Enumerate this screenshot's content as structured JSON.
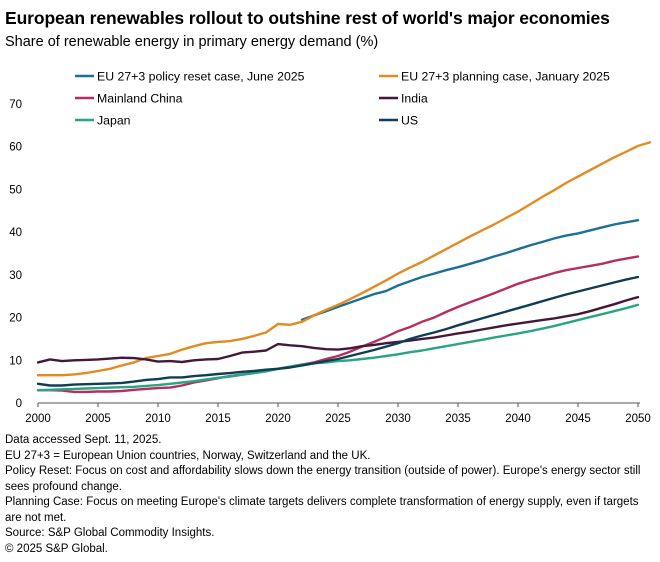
{
  "title": "European renewables rollout to outshine rest of world's major economies",
  "subtitle": "Share of renewable energy in primary energy demand (%)",
  "chart_data": {
    "type": "line",
    "xlim": [
      2000,
      2050
    ],
    "ylim": [
      0,
      70
    ],
    "x_ticks": [
      2000,
      2005,
      2010,
      2015,
      2020,
      2025,
      2030,
      2035,
      2040,
      2045,
      2050
    ],
    "y_ticks": [
      0,
      10,
      20,
      30,
      40,
      50,
      60,
      70
    ],
    "grid": false,
    "legend_position": "top",
    "series": [
      {
        "name": "EU 27+3 policy reset case, June 2025",
        "color": "#1b7096",
        "points": [
          [
            2022,
            19.5
          ],
          [
            2023,
            20.5
          ],
          [
            2024,
            21.5
          ],
          [
            2025,
            22.5
          ],
          [
            2026,
            23.5
          ],
          [
            2027,
            24.5
          ],
          [
            2028,
            25.5
          ],
          [
            2029,
            26.2
          ],
          [
            2030,
            27.5
          ],
          [
            2031,
            28.5
          ],
          [
            2032,
            29.5
          ],
          [
            2033,
            30.3
          ],
          [
            2034,
            31.1
          ],
          [
            2035,
            31.8
          ],
          [
            2036,
            32.6
          ],
          [
            2037,
            33.4
          ],
          [
            2038,
            34.3
          ],
          [
            2039,
            35.1
          ],
          [
            2040,
            36.0
          ],
          [
            2041,
            36.9
          ],
          [
            2042,
            37.7
          ],
          [
            2043,
            38.5
          ],
          [
            2044,
            39.2
          ],
          [
            2045,
            39.7
          ],
          [
            2046,
            40.4
          ],
          [
            2047,
            41.1
          ],
          [
            2048,
            41.8
          ],
          [
            2049,
            42.3
          ],
          [
            2050,
            42.8
          ]
        ]
      },
      {
        "name": "EU 27+3 planning case, January 2025",
        "color": "#e38b21",
        "points": [
          [
            2000,
            6.5
          ],
          [
            2001,
            6.5
          ],
          [
            2002,
            6.5
          ],
          [
            2003,
            6.7
          ],
          [
            2004,
            7.0
          ],
          [
            2005,
            7.5
          ],
          [
            2006,
            8.0
          ],
          [
            2007,
            8.8
          ],
          [
            2008,
            9.5
          ],
          [
            2009,
            10.5
          ],
          [
            2010,
            11.0
          ],
          [
            2011,
            11.5
          ],
          [
            2012,
            12.5
          ],
          [
            2013,
            13.3
          ],
          [
            2014,
            14.0
          ],
          [
            2015,
            14.3
          ],
          [
            2016,
            14.5
          ],
          [
            2017,
            15.0
          ],
          [
            2018,
            15.7
          ],
          [
            2019,
            16.5
          ],
          [
            2020,
            18.5
          ],
          [
            2021,
            18.3
          ],
          [
            2022,
            19.0
          ],
          [
            2023,
            20.5
          ],
          [
            2024,
            21.8
          ],
          [
            2025,
            23.0
          ],
          [
            2026,
            24.3
          ],
          [
            2027,
            25.7
          ],
          [
            2028,
            27.2
          ],
          [
            2029,
            28.7
          ],
          [
            2030,
            30.3
          ],
          [
            2031,
            31.7
          ],
          [
            2032,
            33.0
          ],
          [
            2033,
            34.5
          ],
          [
            2034,
            36.0
          ],
          [
            2035,
            37.5
          ],
          [
            2036,
            39.0
          ],
          [
            2037,
            40.4
          ],
          [
            2038,
            41.8
          ],
          [
            2039,
            43.3
          ],
          [
            2040,
            44.8
          ],
          [
            2041,
            46.5
          ],
          [
            2042,
            48.2
          ],
          [
            2043,
            49.8
          ],
          [
            2044,
            51.5
          ],
          [
            2045,
            53.0
          ],
          [
            2046,
            54.5
          ],
          [
            2047,
            56.0
          ],
          [
            2048,
            57.5
          ],
          [
            2049,
            58.8
          ],
          [
            2050,
            60.2
          ],
          [
            2051,
            61.0
          ]
        ]
      },
      {
        "name": "Mainland China",
        "color": "#b52e62",
        "points": [
          [
            2000,
            3.0
          ],
          [
            2001,
            3.0
          ],
          [
            2002,
            2.9
          ],
          [
            2003,
            2.6
          ],
          [
            2004,
            2.6
          ],
          [
            2005,
            2.7
          ],
          [
            2006,
            2.7
          ],
          [
            2007,
            2.8
          ],
          [
            2008,
            3.1
          ],
          [
            2009,
            3.3
          ],
          [
            2010,
            3.5
          ],
          [
            2011,
            3.6
          ],
          [
            2012,
            4.1
          ],
          [
            2013,
            4.8
          ],
          [
            2014,
            5.3
          ],
          [
            2015,
            5.8
          ],
          [
            2016,
            6.3
          ],
          [
            2017,
            6.7
          ],
          [
            2018,
            7.0
          ],
          [
            2019,
            7.5
          ],
          [
            2020,
            8.0
          ],
          [
            2021,
            8.5
          ],
          [
            2022,
            9.0
          ],
          [
            2023,
            9.5
          ],
          [
            2024,
            10.3
          ],
          [
            2025,
            11.0
          ],
          [
            2026,
            12.0
          ],
          [
            2027,
            13.2
          ],
          [
            2028,
            14.3
          ],
          [
            2029,
            15.5
          ],
          [
            2030,
            16.8
          ],
          [
            2031,
            17.8
          ],
          [
            2032,
            19.0
          ],
          [
            2033,
            20.0
          ],
          [
            2034,
            21.3
          ],
          [
            2035,
            22.5
          ],
          [
            2036,
            23.6
          ],
          [
            2037,
            24.6
          ],
          [
            2038,
            25.7
          ],
          [
            2039,
            26.8
          ],
          [
            2040,
            27.9
          ],
          [
            2041,
            28.8
          ],
          [
            2042,
            29.6
          ],
          [
            2043,
            30.4
          ],
          [
            2044,
            31.1
          ],
          [
            2045,
            31.6
          ],
          [
            2046,
            32.1
          ],
          [
            2047,
            32.6
          ],
          [
            2048,
            33.3
          ],
          [
            2049,
            33.8
          ],
          [
            2050,
            34.3
          ]
        ]
      },
      {
        "name": "India",
        "color": "#45183a",
        "points": [
          [
            2000,
            9.5
          ],
          [
            2001,
            10.2
          ],
          [
            2002,
            9.8
          ],
          [
            2003,
            10.0
          ],
          [
            2004,
            10.1
          ],
          [
            2005,
            10.2
          ],
          [
            2006,
            10.4
          ],
          [
            2007,
            10.6
          ],
          [
            2008,
            10.5
          ],
          [
            2009,
            10.2
          ],
          [
            2010,
            9.7
          ],
          [
            2011,
            9.8
          ],
          [
            2012,
            9.6
          ],
          [
            2013,
            10.0
          ],
          [
            2014,
            10.2
          ],
          [
            2015,
            10.3
          ],
          [
            2016,
            11.0
          ],
          [
            2017,
            11.8
          ],
          [
            2018,
            12.0
          ],
          [
            2019,
            12.3
          ],
          [
            2020,
            13.8
          ],
          [
            2021,
            13.5
          ],
          [
            2022,
            13.3
          ],
          [
            2023,
            12.9
          ],
          [
            2024,
            12.6
          ],
          [
            2025,
            12.5
          ],
          [
            2026,
            12.8
          ],
          [
            2027,
            13.3
          ],
          [
            2028,
            13.6
          ],
          [
            2029,
            14.0
          ],
          [
            2030,
            14.3
          ],
          [
            2031,
            14.6
          ],
          [
            2032,
            15.0
          ],
          [
            2033,
            15.3
          ],
          [
            2034,
            15.8
          ],
          [
            2035,
            16.3
          ],
          [
            2036,
            16.7
          ],
          [
            2037,
            17.2
          ],
          [
            2038,
            17.7
          ],
          [
            2039,
            18.2
          ],
          [
            2040,
            18.6
          ],
          [
            2041,
            19.0
          ],
          [
            2042,
            19.4
          ],
          [
            2043,
            19.8
          ],
          [
            2044,
            20.3
          ],
          [
            2045,
            20.8
          ],
          [
            2046,
            21.5
          ],
          [
            2047,
            22.3
          ],
          [
            2048,
            23.1
          ],
          [
            2049,
            24.0
          ],
          [
            2050,
            24.8
          ]
        ]
      },
      {
        "name": "Japan",
        "color": "#2aa482",
        "points": [
          [
            2000,
            3.0
          ],
          [
            2001,
            3.1
          ],
          [
            2002,
            3.2
          ],
          [
            2003,
            3.3
          ],
          [
            2004,
            3.4
          ],
          [
            2005,
            3.5
          ],
          [
            2006,
            3.6
          ],
          [
            2007,
            3.7
          ],
          [
            2008,
            3.8
          ],
          [
            2009,
            4.0
          ],
          [
            2010,
            4.2
          ],
          [
            2011,
            4.5
          ],
          [
            2012,
            4.8
          ],
          [
            2013,
            5.1
          ],
          [
            2014,
            5.5
          ],
          [
            2015,
            5.9
          ],
          [
            2016,
            6.2
          ],
          [
            2017,
            6.6
          ],
          [
            2018,
            7.0
          ],
          [
            2019,
            7.4
          ],
          [
            2020,
            8.0
          ],
          [
            2021,
            8.5
          ],
          [
            2022,
            9.0
          ],
          [
            2023,
            9.3
          ],
          [
            2024,
            9.5
          ],
          [
            2025,
            9.8
          ],
          [
            2026,
            10.0
          ],
          [
            2027,
            10.3
          ],
          [
            2028,
            10.6
          ],
          [
            2029,
            11.0
          ],
          [
            2030,
            11.4
          ],
          [
            2031,
            11.9
          ],
          [
            2032,
            12.3
          ],
          [
            2033,
            12.8
          ],
          [
            2034,
            13.3
          ],
          [
            2035,
            13.8
          ],
          [
            2036,
            14.3
          ],
          [
            2037,
            14.8
          ],
          [
            2038,
            15.3
          ],
          [
            2039,
            15.8
          ],
          [
            2040,
            16.3
          ],
          [
            2041,
            16.8
          ],
          [
            2042,
            17.4
          ],
          [
            2043,
            18.0
          ],
          [
            2044,
            18.7
          ],
          [
            2045,
            19.4
          ],
          [
            2046,
            20.1
          ],
          [
            2047,
            20.8
          ],
          [
            2048,
            21.5
          ],
          [
            2049,
            22.2
          ],
          [
            2050,
            23.0
          ]
        ]
      },
      {
        "name": "US",
        "color": "#0f3d55",
        "points": [
          [
            2000,
            4.5
          ],
          [
            2001,
            4.1
          ],
          [
            2002,
            4.1
          ],
          [
            2003,
            4.3
          ],
          [
            2004,
            4.4
          ],
          [
            2005,
            4.5
          ],
          [
            2006,
            4.6
          ],
          [
            2007,
            4.7
          ],
          [
            2008,
            5.0
          ],
          [
            2009,
            5.4
          ],
          [
            2010,
            5.6
          ],
          [
            2011,
            6.0
          ],
          [
            2012,
            6.0
          ],
          [
            2013,
            6.3
          ],
          [
            2014,
            6.5
          ],
          [
            2015,
            6.8
          ],
          [
            2016,
            7.0
          ],
          [
            2017,
            7.3
          ],
          [
            2018,
            7.5
          ],
          [
            2019,
            7.8
          ],
          [
            2020,
            8.0
          ],
          [
            2021,
            8.3
          ],
          [
            2022,
            8.8
          ],
          [
            2023,
            9.3
          ],
          [
            2024,
            9.8
          ],
          [
            2025,
            10.3
          ],
          [
            2026,
            11.0
          ],
          [
            2027,
            11.7
          ],
          [
            2028,
            12.4
          ],
          [
            2029,
            13.2
          ],
          [
            2030,
            14.0
          ],
          [
            2031,
            15.0
          ],
          [
            2032,
            15.8
          ],
          [
            2033,
            16.5
          ],
          [
            2034,
            17.3
          ],
          [
            2035,
            18.2
          ],
          [
            2036,
            19.0
          ],
          [
            2037,
            19.8
          ],
          [
            2038,
            20.6
          ],
          [
            2039,
            21.4
          ],
          [
            2040,
            22.2
          ],
          [
            2041,
            23.0
          ],
          [
            2042,
            23.8
          ],
          [
            2043,
            24.6
          ],
          [
            2044,
            25.4
          ],
          [
            2045,
            26.1
          ],
          [
            2046,
            26.8
          ],
          [
            2047,
            27.5
          ],
          [
            2048,
            28.2
          ],
          [
            2049,
            28.9
          ],
          [
            2050,
            29.5
          ]
        ]
      }
    ]
  },
  "notes": [
    "Data accessed Sept. 11, 2025.",
    "EU 27+3 = European Union countries, Norway, Switzerland and the UK.",
    "Policy Reset: Focus on cost and affordability slows down the energy transition (outside of power). Europe's energy sector still sees profound change.",
    "Planning Case: Focus on meeting Europe's climate targets delivers complete transformation of energy supply, even if targets are not met.",
    "Source: S&P Global Commodity Insights.",
    "© 2025 S&P Global."
  ]
}
